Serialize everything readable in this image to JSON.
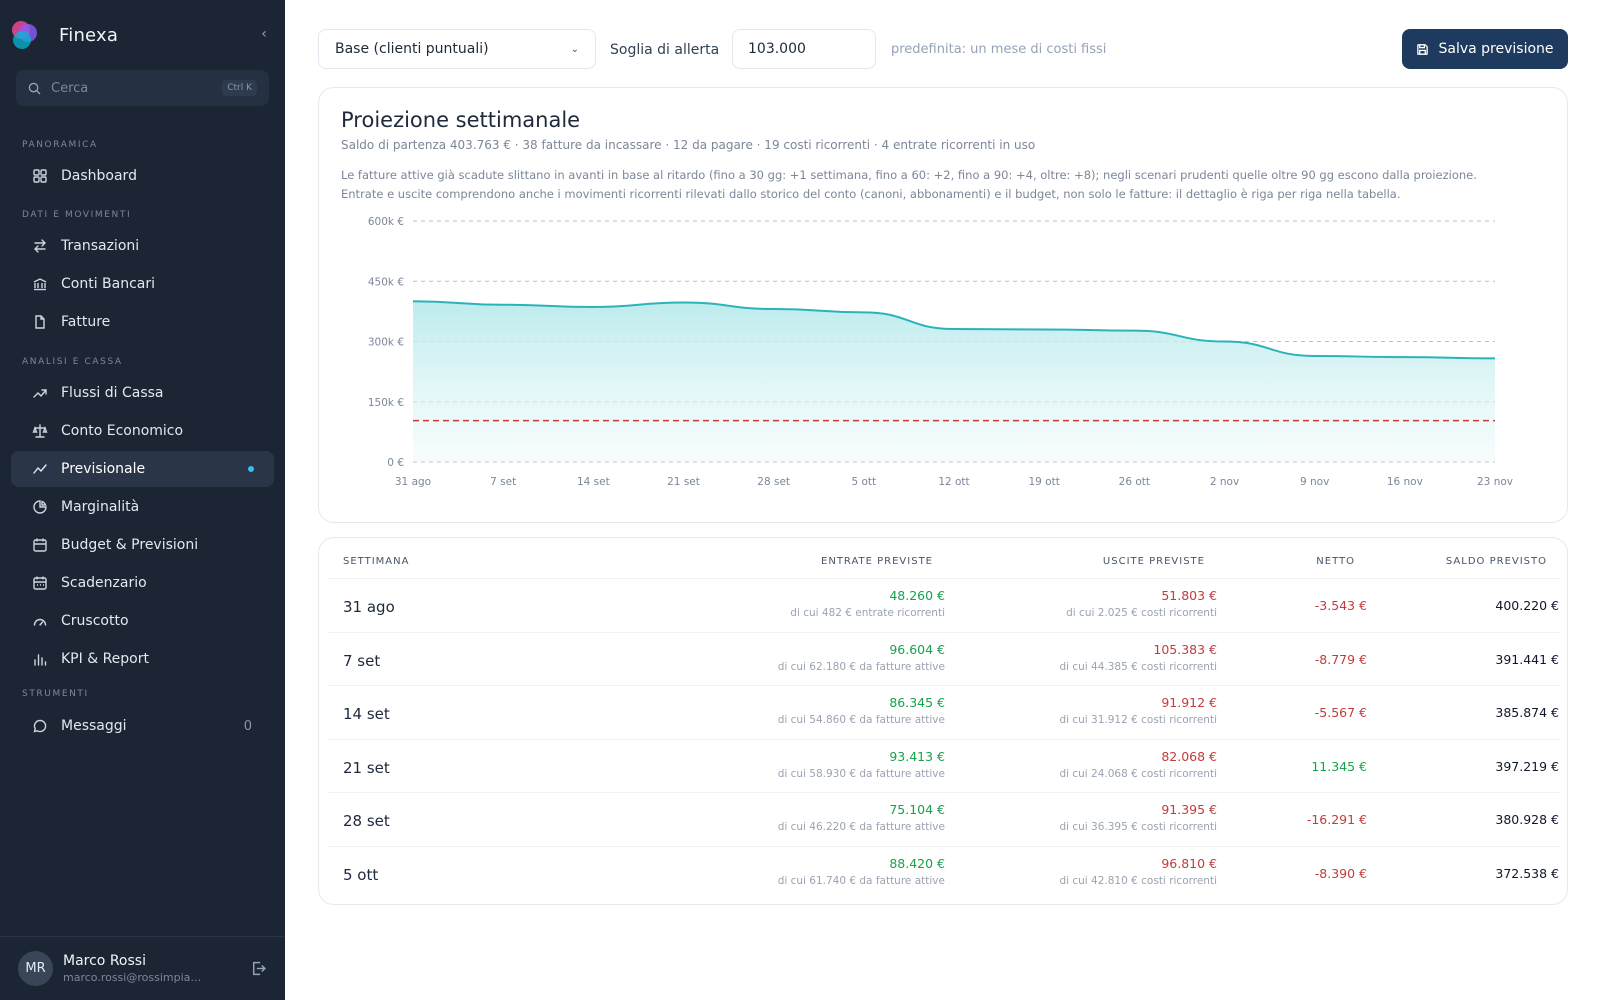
{
  "sidebar": {
    "brand": "Finexa",
    "search": {
      "placeholder": "Cerca",
      "shortcut": "Ctrl K"
    },
    "sections": {
      "overview": "PANORAMICA",
      "data": "DATI E MOVIMENTI",
      "analysis": "ANALISI E CASSA",
      "tools": "STRUMENTI"
    },
    "items": {
      "dashboard": "Dashboard",
      "transazioni": "Transazioni",
      "conti": "Conti Bancari",
      "fatture": "Fatture",
      "flussi": "Flussi di Cassa",
      "conto_economico": "Conto Economico",
      "previsionale": "Previsionale",
      "marginalita": "Marginalità",
      "budget": "Budget & Previsioni",
      "scadenzario": "Scadenzario",
      "cruscotto": "Cruscotto",
      "kpi": "KPI & Report",
      "messaggi": "Messaggi",
      "messaggi_count": "0"
    },
    "user": {
      "initials": "MR",
      "name": "Marco Rossi",
      "email": "marco.rossi@rossimpianti.it"
    }
  },
  "toolbar": {
    "scenario": "Base (clienti puntuali)",
    "threshold_label": "Soglia di allerta",
    "threshold_value": "103.000",
    "threshold_hint": "predefinita: un mese di costi fissi",
    "save_label": "Salva previsione"
  },
  "chart_card": {
    "title": "Proiezione settimanale",
    "subtitle": "Saldo di partenza 403.763 € · 38 fatture da incassare · 12 da pagare · 19 costi ricorrenti · 4 entrate ricorrenti in uso",
    "desc1": "Le fatture attive già scadute slittano in avanti in base al ritardo (fino a 30 gg: +1 settimana, fino a 60: +2, fino a 90: +4, oltre: +8); negli scenari prudenti quelle oltre 90 gg escono dalla proiezione.",
    "desc2": "Entrate e uscite comprendono anche i movimenti ricorrenti rilevati dallo storico del conto (canoni, abbonamenti) e il budget, non solo le fatture: il dettaglio è riga per riga nella tabella."
  },
  "chart_data": {
    "type": "area",
    "categories": [
      "31 ago",
      "7 set",
      "14 set",
      "21 set",
      "28 set",
      "5 ott",
      "12 ott",
      "19 ott",
      "26 ott",
      "2 nov",
      "9 nov",
      "16 nov",
      "23 nov"
    ],
    "values": [
      400220,
      391441,
      385874,
      397219,
      380928,
      372538,
      331000,
      330000,
      327000,
      300000,
      264000,
      261000,
      258000
    ],
    "ylim": [
      0,
      600000
    ],
    "yticks": [
      0,
      150000,
      300000,
      450000,
      600000
    ],
    "ytick_labels": [
      "0 €",
      "150k €",
      "300k €",
      "450k €",
      "600k €"
    ],
    "threshold": 103000,
    "grid": true,
    "colors": {
      "line": "#2bb3b8",
      "fill": "#b9eaec",
      "threshold": "#c53b3b",
      "grid": "#b8bfca"
    }
  },
  "table": {
    "headers": {
      "week": "SETTIMANA",
      "income": "ENTRATE PREVISTE",
      "expenses": "USCITE PREVISTE",
      "net": "NETTO",
      "balance": "SALDO PREVISTO"
    },
    "rows": [
      {
        "week": "31 ago",
        "income": "48.260 €",
        "income_note": "di cui 482 € entrate ricorrenti",
        "expenses": "51.803 €",
        "expenses_note": "di cui 2.025 € costi ricorrenti",
        "net": "-3.543 €",
        "net_sign": "neg",
        "balance": "400.220 €"
      },
      {
        "week": "7 set",
        "income": "96.604 €",
        "income_note": "di cui 62.180 € da fatture attive",
        "expenses": "105.383 €",
        "expenses_note": "di cui 44.385 € costi ricorrenti",
        "net": "-8.779 €",
        "net_sign": "neg",
        "balance": "391.441 €"
      },
      {
        "week": "14 set",
        "income": "86.345 €",
        "income_note": "di cui 54.860 € da fatture attive",
        "expenses": "91.912 €",
        "expenses_note": "di cui 31.912 € costi ricorrenti",
        "net": "-5.567 €",
        "net_sign": "neg",
        "balance": "385.874 €"
      },
      {
        "week": "21 set",
        "income": "93.413 €",
        "income_note": "di cui 58.930 € da fatture attive",
        "expenses": "82.068 €",
        "expenses_note": "di cui 24.068 € costi ricorrenti",
        "net": "11.345 €",
        "net_sign": "pos",
        "balance": "397.219 €"
      },
      {
        "week": "28 set",
        "income": "75.104 €",
        "income_note": "di cui 46.220 € da fatture attive",
        "expenses": "91.395 €",
        "expenses_note": "di cui 36.395 € costi ricorrenti",
        "net": "-16.291 €",
        "net_sign": "neg",
        "balance": "380.928 €"
      },
      {
        "week": "5 ott",
        "income": "88.420 €",
        "income_note": "di cui 61.740 € da fatture attive",
        "expenses": "96.810 €",
        "expenses_note": "di cui 42.810 € costi ricorrenti",
        "net": "-8.390 €",
        "net_sign": "neg",
        "balance": "372.538 €"
      }
    ]
  }
}
